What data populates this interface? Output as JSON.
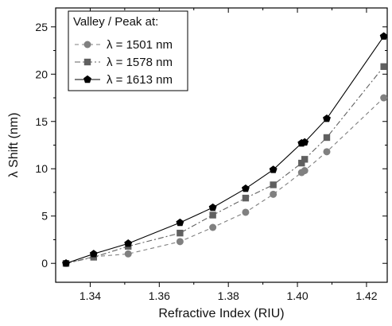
{
  "chart_data": {
    "type": "line",
    "xlabel": "Refractive Index (RIU)",
    "ylabel": "λ Shift (nm)",
    "xlim": [
      1.33,
      1.426
    ],
    "ylim": [
      -2,
      27
    ],
    "xticks": [
      "1.34",
      "1.36",
      "1.38",
      "1.40",
      "1.42"
    ],
    "yticks": [
      "0",
      "5",
      "10",
      "15",
      "20",
      "25"
    ],
    "legend": {
      "title": "Valley / Peak at:",
      "position": "top-left"
    },
    "series": [
      {
        "name": "λ = 1501 nm",
        "color": "#808080",
        "marker": "circle",
        "line": "dashed",
        "x": [
          1.333,
          1.341,
          1.351,
          1.366,
          1.3755,
          1.385,
          1.393,
          1.4012,
          1.4021,
          1.4085,
          1.425
        ],
        "y": [
          0,
          0.7,
          1.0,
          2.3,
          3.8,
          5.4,
          7.3,
          9.6,
          9.8,
          11.8,
          17.5
        ]
      },
      {
        "name": "λ = 1578 nm",
        "color": "#606060",
        "marker": "square",
        "line": "dashdot",
        "x": [
          1.333,
          1.341,
          1.351,
          1.366,
          1.3755,
          1.385,
          1.393,
          1.4012,
          1.4021,
          1.4085,
          1.425
        ],
        "y": [
          0,
          0.65,
          1.8,
          3.2,
          5.1,
          6.9,
          8.3,
          10.6,
          11.0,
          13.3,
          20.8
        ]
      },
      {
        "name": "λ = 1613 nm",
        "color": "#000000",
        "marker": "pentagon",
        "line": "solid",
        "x": [
          1.333,
          1.341,
          1.351,
          1.366,
          1.3755,
          1.385,
          1.393,
          1.4012,
          1.4021,
          1.4085,
          1.425
        ],
        "y": [
          0,
          1.0,
          2.1,
          4.3,
          5.9,
          7.9,
          9.9,
          12.7,
          12.8,
          15.3,
          24.0
        ]
      }
    ]
  }
}
